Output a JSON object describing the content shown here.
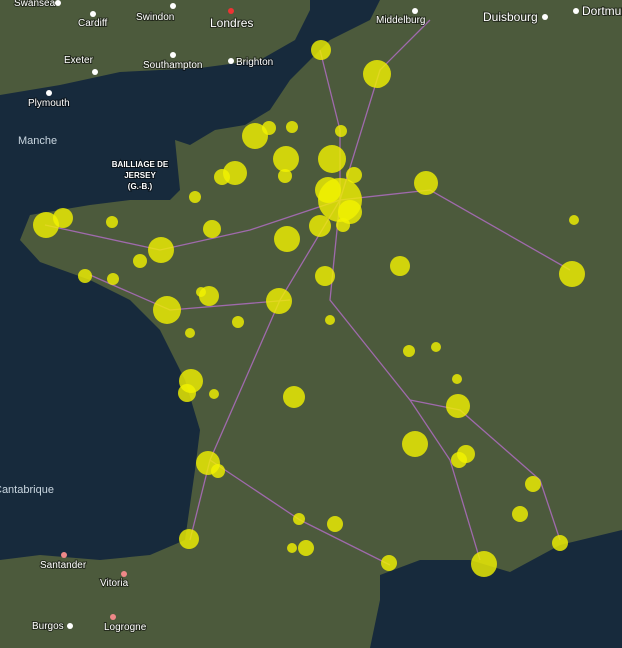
{
  "map": {
    "labels": [
      "Swansea",
      "Cardiff",
      "Swindon",
      "Londres",
      "Middelburg",
      "Duisbourg",
      "Dortmund",
      "Exeter",
      "Southampton",
      "Brighton",
      "Plymouth",
      "Manche",
      "BAILLIAGE DE",
      "JERSEY",
      "(G.-B.)",
      "Cantabrique",
      "Santander",
      "Vitoria",
      "Burgos",
      "Logrogne"
    ]
  }
}
